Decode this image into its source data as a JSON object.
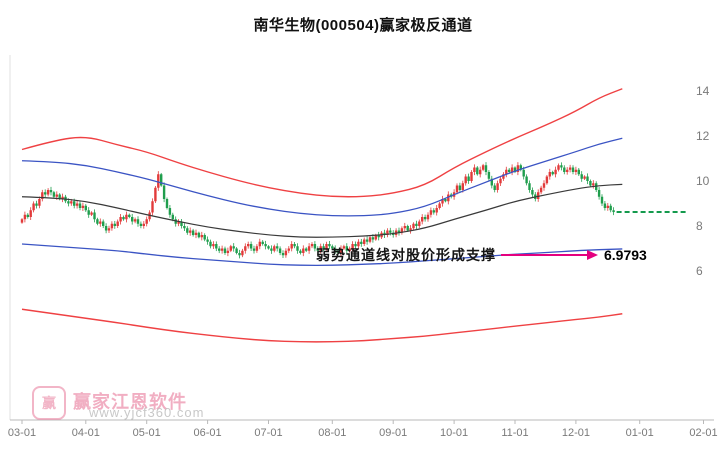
{
  "title": "南华生物(000504)赢家极反通道",
  "stock_name": "南华生物",
  "stock_code": "000504",
  "annotation": {
    "text": "弱势通道线对股价形成支撑",
    "value": "6.9793",
    "arrow_color": "#e4007f"
  },
  "watermark": {
    "logo_text": "赢",
    "brand": "赢家江恩软件",
    "url": "www.yjcf360.com",
    "color": "#e87a9b"
  },
  "chart_data": {
    "type": "candlestick",
    "title": "南华生物(000504)赢家极反通道",
    "ylim": [
      2,
      15
    ],
    "y_ticks": [
      6,
      8,
      10,
      12,
      14
    ],
    "x_ticks": [
      {
        "label": "03-01",
        "i": 0
      },
      {
        "label": "04-01",
        "i": 22
      },
      {
        "label": "05-01",
        "i": 43
      },
      {
        "label": "06-01",
        "i": 64
      },
      {
        "label": "07-01",
        "i": 85
      },
      {
        "label": "08-01",
        "i": 107
      },
      {
        "label": "09-01",
        "i": 128
      },
      {
        "label": "10-01",
        "i": 149
      },
      {
        "label": "11-01",
        "i": 170
      },
      {
        "label": "12-01",
        "i": 191
      },
      {
        "label": "01-01",
        "i": 213
      },
      {
        "label": "02-01",
        "i": 235
      }
    ],
    "closes": [
      8.3,
      8.5,
      8.4,
      8.7,
      9.0,
      8.9,
      9.2,
      9.5,
      9.4,
      9.6,
      9.5,
      9.3,
      9.4,
      9.2,
      9.3,
      9.1,
      9.0,
      9.1,
      8.9,
      9.0,
      8.8,
      8.9,
      8.7,
      8.5,
      8.6,
      8.3,
      8.1,
      8.2,
      8.0,
      7.8,
      7.9,
      8.1,
      8.0,
      8.2,
      8.4,
      8.3,
      8.5,
      8.4,
      8.2,
      8.3,
      8.1,
      8.0,
      8.1,
      8.3,
      8.6,
      9.1,
      9.7,
      10.3,
      9.8,
      9.2,
      8.8,
      8.5,
      8.3,
      8.1,
      8.2,
      8.0,
      7.9,
      7.7,
      7.8,
      7.6,
      7.7,
      7.5,
      7.6,
      7.4,
      7.3,
      7.1,
      7.2,
      7.0,
      6.9,
      7.0,
      6.8,
      6.9,
      7.1,
      7.0,
      6.8,
      6.7,
      6.9,
      7.1,
      7.2,
      7.0,
      6.9,
      7.1,
      7.3,
      7.2,
      7.1,
      7.0,
      6.9,
      7.1,
      7.0,
      6.8,
      6.7,
      6.9,
      7.0,
      7.2,
      7.1,
      6.9,
      6.8,
      7.0,
      6.9,
      7.1,
      7.2,
      7.0,
      6.9,
      7.1,
      7.0,
      7.2,
      7.1,
      7.0,
      6.9,
      6.8,
      7.0,
      7.1,
      6.9,
      7.0,
      7.2,
      7.1,
      7.3,
      7.2,
      7.4,
      7.3,
      7.5,
      7.4,
      7.6,
      7.5,
      7.7,
      7.6,
      7.8,
      7.7,
      7.6,
      7.8,
      7.7,
      7.9,
      8.0,
      7.8,
      7.9,
      8.1,
      8.0,
      8.2,
      8.4,
      8.3,
      8.5,
      8.7,
      8.6,
      8.8,
      9.0,
      9.2,
      9.1,
      9.4,
      9.3,
      9.5,
      9.8,
      9.6,
      9.9,
      10.2,
      10.0,
      10.4,
      10.6,
      10.3,
      10.5,
      10.7,
      10.4,
      10.1,
      9.8,
      9.6,
      9.9,
      10.1,
      10.3,
      10.5,
      10.4,
      10.6,
      10.4,
      10.7,
      10.5,
      10.2,
      9.9,
      9.6,
      9.4,
      9.2,
      9.5,
      9.7,
      9.9,
      10.2,
      10.4,
      10.3,
      10.5,
      10.7,
      10.6,
      10.4,
      10.5,
      10.6,
      10.4,
      10.5,
      10.3,
      10.1,
      10.2,
      10.0,
      9.8,
      9.9,
      9.6,
      9.3,
      9.0,
      8.8,
      8.9,
      8.7,
      8.62
    ],
    "sample_idx": [
      0,
      11,
      22,
      33,
      43,
      54,
      64,
      75,
      85,
      96,
      107,
      118,
      128,
      139,
      149,
      160,
      170,
      181,
      191,
      199,
      207
    ],
    "channels": [
      {
        "name": "outer-resistance-red",
        "color": "#ef4143",
        "width": 1.4,
        "prices": [
          11.4,
          11.8,
          12.0,
          11.6,
          11.3,
          10.8,
          10.4,
          10.0,
          9.7,
          9.45,
          9.3,
          9.3,
          9.45,
          9.8,
          10.6,
          11.3,
          11.9,
          12.5,
          13.1,
          13.7,
          14.1
        ]
      },
      {
        "name": "upper-blue",
        "color": "#3b54c4",
        "width": 1.3,
        "prices": [
          10.9,
          10.85,
          10.7,
          10.4,
          10.1,
          9.7,
          9.35,
          9.0,
          8.75,
          8.55,
          8.45,
          8.45,
          8.55,
          8.85,
          9.4,
          9.95,
          10.45,
          10.9,
          11.3,
          11.65,
          11.9
        ]
      },
      {
        "name": "middle-black",
        "color": "#3a3a3a",
        "width": 1.2,
        "prices": [
          9.3,
          9.25,
          9.1,
          8.8,
          8.5,
          8.2,
          7.95,
          7.75,
          7.6,
          7.5,
          7.5,
          7.55,
          7.65,
          7.9,
          8.3,
          8.7,
          9.1,
          9.4,
          9.65,
          9.8,
          9.85
        ]
      },
      {
        "name": "lower-blue-support",
        "color": "#3b54c4",
        "width": 1.3,
        "prices": [
          7.2,
          7.1,
          7.0,
          6.9,
          6.75,
          6.6,
          6.5,
          6.4,
          6.3,
          6.25,
          6.25,
          6.3,
          6.35,
          6.45,
          6.55,
          6.65,
          6.75,
          6.82,
          6.9,
          6.95,
          6.98
        ]
      },
      {
        "name": "outer-support-red",
        "color": "#ef4143",
        "width": 1.4,
        "prices": [
          4.3,
          4.1,
          3.9,
          3.7,
          3.5,
          3.3,
          3.15,
          3.0,
          2.9,
          2.85,
          2.85,
          2.9,
          3.0,
          3.1,
          3.25,
          3.4,
          3.55,
          3.7,
          3.85,
          3.95,
          4.1
        ]
      }
    ],
    "last_price_line": {
      "price": 8.62,
      "color": "#149a4d"
    },
    "support_value": 6.9793,
    "colors": {
      "up": "#e23a3a",
      "down": "#1f9e4d",
      "axis": "#b9b9b9",
      "label": "#7a7a7a"
    }
  }
}
